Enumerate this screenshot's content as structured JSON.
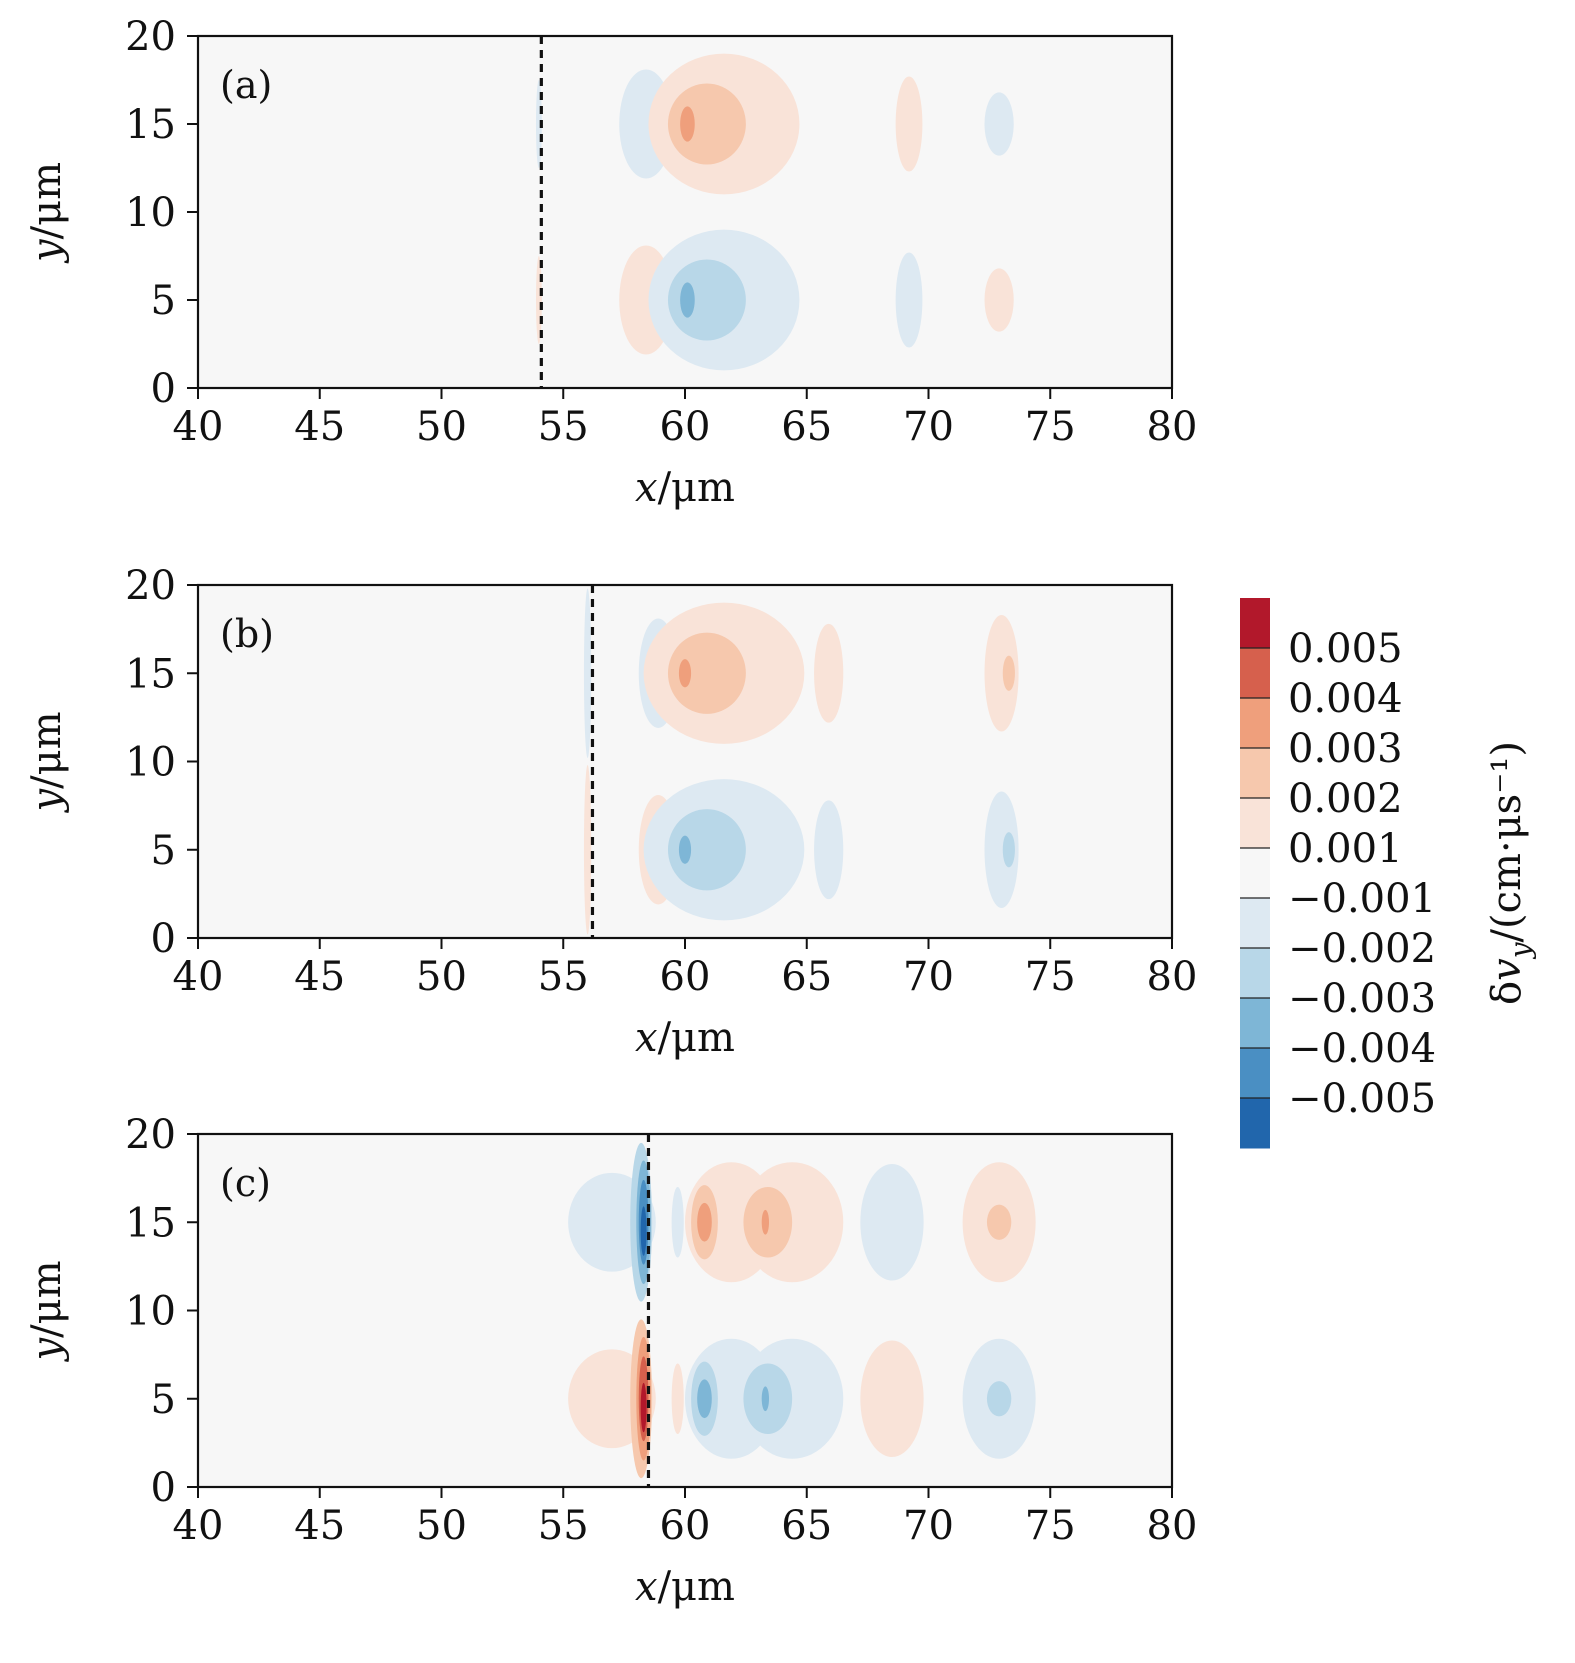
{
  "chart_data": {
    "type": "contour",
    "colorbar": {
      "title": "δv_y/(cm·μs⁻¹)",
      "levels": [
        -0.006,
        -0.005,
        -0.004,
        -0.003,
        -0.002,
        -0.001,
        0.001,
        0.002,
        0.003,
        0.004,
        0.005,
        0.006
      ],
      "tick_values": [
        -0.005,
        -0.004,
        -0.003,
        -0.002,
        -0.001,
        0.001,
        0.002,
        0.003,
        0.004,
        0.005
      ],
      "tick_labels": [
        "−0.005",
        "−0.004",
        "−0.003",
        "−0.002",
        "−0.001",
        "0.001",
        "0.002",
        "0.003",
        "0.004",
        "0.005"
      ],
      "colors": [
        "#2166ac",
        "#4a8fc3",
        "#7eb6d6",
        "#b8d7e8",
        "#dde9f2",
        "#f7f7f7",
        "#f9e3d8",
        "#f6c8ad",
        "#ef9f7c",
        "#d6604d",
        "#b2182b"
      ]
    },
    "panels": [
      {
        "label": "(a)",
        "xlabel": "x/μm",
        "ylabel": "y/μm",
        "xlim": [
          40,
          80
        ],
        "ylim": [
          0,
          20
        ],
        "xticks": [
          "40",
          "45",
          "50",
          "55",
          "60",
          "65",
          "70",
          "75",
          "80"
        ],
        "yticks": [
          "0",
          "5",
          "10",
          "15",
          "20"
        ],
        "front_x": 54.1,
        "blobs": [
          {
            "x": 54.0,
            "y": 5,
            "rx": 0.12,
            "ry": 2.5,
            "level": 1
          },
          {
            "x": 54.0,
            "y": 15,
            "rx": 0.12,
            "ry": 2.5,
            "level": -1
          },
          {
            "x": 58.4,
            "y": 15,
            "rx": 1.1,
            "ry": 3.1,
            "level": -1
          },
          {
            "x": 58.4,
            "y": 5,
            "rx": 1.1,
            "ry": 3.1,
            "level": 1
          },
          {
            "x": 61.6,
            "y": 15,
            "rx": 3.1,
            "ry": 4.0,
            "level": 1
          },
          {
            "x": 60.9,
            "y": 15,
            "rx": 1.6,
            "ry": 2.3,
            "level": 2
          },
          {
            "x": 60.1,
            "y": 15,
            "rx": 0.3,
            "ry": 1.0,
            "level": 3
          },
          {
            "x": 61.6,
            "y": 5,
            "rx": 3.1,
            "ry": 4.0,
            "level": -1
          },
          {
            "x": 60.9,
            "y": 5,
            "rx": 1.6,
            "ry": 2.3,
            "level": -2
          },
          {
            "x": 60.1,
            "y": 5,
            "rx": 0.3,
            "ry": 1.0,
            "level": -3
          },
          {
            "x": 69.2,
            "y": 15,
            "rx": 0.55,
            "ry": 2.7,
            "level": 1
          },
          {
            "x": 69.2,
            "y": 5,
            "rx": 0.55,
            "ry": 2.7,
            "level": -1
          },
          {
            "x": 72.9,
            "y": 15,
            "rx": 0.6,
            "ry": 1.8,
            "level": -1
          },
          {
            "x": 72.9,
            "y": 5,
            "rx": 0.6,
            "ry": 1.8,
            "level": 1
          }
        ]
      },
      {
        "label": "(b)",
        "xlabel": "x/μm",
        "ylabel": "y/μm",
        "xlim": [
          40,
          80
        ],
        "ylim": [
          0,
          20
        ],
        "xticks": [
          "40",
          "45",
          "50",
          "55",
          "60",
          "65",
          "70",
          "75",
          "80"
        ],
        "yticks": [
          "0",
          "5",
          "10",
          "15",
          "20"
        ],
        "front_x": 56.2,
        "blobs": [
          {
            "x": 56.0,
            "y": 15,
            "rx": 0.15,
            "ry": 4.8,
            "level": -1
          },
          {
            "x": 56.0,
            "y": 5,
            "rx": 0.15,
            "ry": 4.8,
            "level": 1
          },
          {
            "x": 58.9,
            "y": 15,
            "rx": 0.8,
            "ry": 3.1,
            "level": -1
          },
          {
            "x": 58.9,
            "y": 5,
            "rx": 0.8,
            "ry": 3.1,
            "level": 1
          },
          {
            "x": 61.6,
            "y": 15,
            "rx": 3.3,
            "ry": 4.0,
            "level": 1
          },
          {
            "x": 60.9,
            "y": 15,
            "rx": 1.6,
            "ry": 2.3,
            "level": 2
          },
          {
            "x": 60.0,
            "y": 15,
            "rx": 0.25,
            "ry": 0.8,
            "level": 3
          },
          {
            "x": 61.6,
            "y": 5,
            "rx": 3.3,
            "ry": 4.0,
            "level": -1
          },
          {
            "x": 60.9,
            "y": 5,
            "rx": 1.6,
            "ry": 2.3,
            "level": -2
          },
          {
            "x": 60.0,
            "y": 5,
            "rx": 0.25,
            "ry": 0.8,
            "level": -3
          },
          {
            "x": 65.9,
            "y": 15,
            "rx": 0.6,
            "ry": 2.8,
            "level": 1
          },
          {
            "x": 65.9,
            "y": 5,
            "rx": 0.6,
            "ry": 2.8,
            "level": -1
          },
          {
            "x": 73.0,
            "y": 15,
            "rx": 0.7,
            "ry": 3.3,
            "level": 1
          },
          {
            "x": 73.3,
            "y": 15,
            "rx": 0.25,
            "ry": 1.0,
            "level": 2
          },
          {
            "x": 73.0,
            "y": 5,
            "rx": 0.7,
            "ry": 3.3,
            "level": -1
          },
          {
            "x": 73.3,
            "y": 5,
            "rx": 0.25,
            "ry": 1.0,
            "level": -2
          }
        ]
      },
      {
        "label": "(c)",
        "xlabel": "x/μm",
        "ylabel": "y/μm",
        "xlim": [
          40,
          80
        ],
        "ylim": [
          0,
          20
        ],
        "xticks": [
          "40",
          "45",
          "50",
          "55",
          "60",
          "65",
          "70",
          "75",
          "80"
        ],
        "yticks": [
          "0",
          "5",
          "10",
          "15",
          "20"
        ],
        "front_x": 58.5,
        "blobs": [
          {
            "x": 57.0,
            "y": 15,
            "rx": 1.8,
            "ry": 2.8,
            "level": -1
          },
          {
            "x": 58.2,
            "y": 15,
            "rx": 0.45,
            "ry": 4.5,
            "level": -2
          },
          {
            "x": 58.3,
            "y": 15,
            "rx": 0.3,
            "ry": 3.5,
            "level": -3
          },
          {
            "x": 58.3,
            "y": 15,
            "rx": 0.2,
            "ry": 2.4,
            "level": -4
          },
          {
            "x": 58.3,
            "y": 14.5,
            "rx": 0.12,
            "ry": 1.4,
            "level": -5
          },
          {
            "x": 57.0,
            "y": 5,
            "rx": 1.8,
            "ry": 2.8,
            "level": 1
          },
          {
            "x": 58.2,
            "y": 5,
            "rx": 0.45,
            "ry": 4.5,
            "level": 2
          },
          {
            "x": 58.3,
            "y": 5,
            "rx": 0.3,
            "ry": 3.5,
            "level": 3
          },
          {
            "x": 58.3,
            "y": 5,
            "rx": 0.2,
            "ry": 2.4,
            "level": 4
          },
          {
            "x": 58.3,
            "y": 4.5,
            "rx": 0.12,
            "ry": 1.4,
            "level": 5
          },
          {
            "x": 59.7,
            "y": 15,
            "rx": 0.25,
            "ry": 2.0,
            "level": -1
          },
          {
            "x": 59.7,
            "y": 5,
            "rx": 0.25,
            "ry": 2.0,
            "level": 1
          },
          {
            "x": 61.9,
            "y": 15,
            "rx": 1.9,
            "ry": 3.4,
            "level": 1
          },
          {
            "x": 60.8,
            "y": 15,
            "rx": 0.55,
            "ry": 2.1,
            "level": 2
          },
          {
            "x": 60.8,
            "y": 15,
            "rx": 0.3,
            "ry": 1.1,
            "level": 3
          },
          {
            "x": 64.4,
            "y": 15,
            "rx": 2.1,
            "ry": 3.4,
            "level": 1
          },
          {
            "x": 63.4,
            "y": 15,
            "rx": 1.0,
            "ry": 2.0,
            "level": 2
          },
          {
            "x": 63.3,
            "y": 15,
            "rx": 0.15,
            "ry": 0.7,
            "level": 3
          },
          {
            "x": 61.9,
            "y": 5,
            "rx": 1.9,
            "ry": 3.4,
            "level": -1
          },
          {
            "x": 60.8,
            "y": 5,
            "rx": 0.55,
            "ry": 2.1,
            "level": -2
          },
          {
            "x": 60.8,
            "y": 5,
            "rx": 0.3,
            "ry": 1.1,
            "level": -3
          },
          {
            "x": 64.4,
            "y": 5,
            "rx": 2.1,
            "ry": 3.4,
            "level": -1
          },
          {
            "x": 63.4,
            "y": 5,
            "rx": 1.0,
            "ry": 2.0,
            "level": -2
          },
          {
            "x": 63.3,
            "y": 5,
            "rx": 0.15,
            "ry": 0.7,
            "level": -3
          },
          {
            "x": 68.5,
            "y": 15,
            "rx": 1.3,
            "ry": 3.3,
            "level": -1
          },
          {
            "x": 68.5,
            "y": 5,
            "rx": 1.3,
            "ry": 3.3,
            "level": 1
          },
          {
            "x": 72.9,
            "y": 15,
            "rx": 1.5,
            "ry": 3.4,
            "level": 1
          },
          {
            "x": 72.9,
            "y": 15,
            "rx": 0.5,
            "ry": 1.0,
            "level": 2
          },
          {
            "x": 72.9,
            "y": 5,
            "rx": 1.5,
            "ry": 3.4,
            "level": -1
          },
          {
            "x": 72.9,
            "y": 5,
            "rx": 0.5,
            "ry": 1.0,
            "level": -2
          }
        ]
      }
    ]
  }
}
